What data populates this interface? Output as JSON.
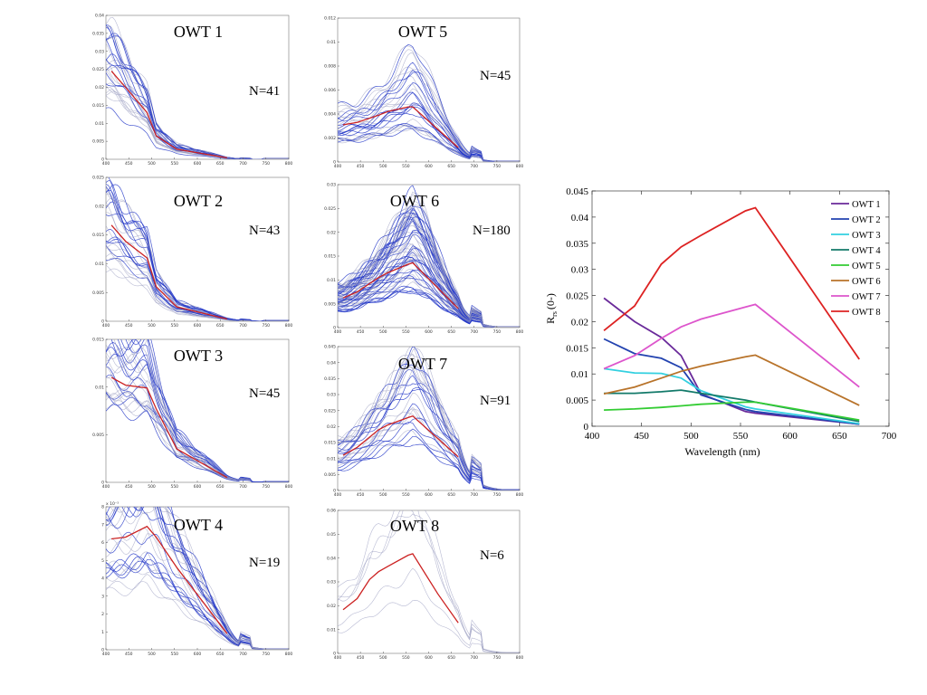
{
  "chart_data": [
    {
      "type": "line",
      "title": "OWT 1",
      "n_label": "N=41",
      "xlim": [
        400,
        800
      ],
      "ylim": [
        0,
        0.04
      ],
      "x_ticks": [
        400,
        450,
        500,
        550,
        600,
        650,
        700,
        750,
        800
      ],
      "x_tick_labels": [
        "400",
        "450",
        "500",
        "550",
        "600",
        "650",
        "700",
        "750",
        "800"
      ],
      "y_ticks": [
        0,
        0.005,
        0.01,
        0.015,
        0.02,
        0.025,
        0.03,
        0.035,
        0.04
      ],
      "y_tick_labels": [
        "0",
        "0.005",
        "0.01",
        "0.015",
        "0.02",
        "0.025",
        "0.03",
        "0.035",
        "0.04"
      ],
      "exponent_label": "",
      "series": [
        {
          "color": "#cc2222",
          "x": [
            412,
            443,
            490,
            510,
            555,
            665
          ],
          "y": [
            0.0245,
            0.02,
            0.013,
            0.0065,
            0.0028,
            0.0004
          ]
        }
      ]
    },
    {
      "type": "line",
      "title": "OWT 2",
      "n_label": "N=43",
      "xlim": [
        400,
        800
      ],
      "ylim": [
        0,
        0.025
      ],
      "x_ticks": [
        400,
        450,
        500,
        550,
        600,
        650,
        700,
        750,
        800
      ],
      "x_tick_labels": [
        "400",
        "450",
        "500",
        "550",
        "600",
        "650",
        "700",
        "750",
        "800"
      ],
      "y_ticks": [
        0,
        0.005,
        0.01,
        0.015,
        0.02,
        0.025
      ],
      "y_tick_labels": [
        "0",
        "0.005",
        "0.01",
        "0.015",
        "0.02",
        "0.025"
      ],
      "exponent_label": "",
      "series": [
        {
          "color": "#cc2222",
          "x": [
            412,
            443,
            490,
            510,
            555,
            665
          ],
          "y": [
            0.0167,
            0.0139,
            0.011,
            0.006,
            0.0025,
            0.0004
          ]
        }
      ]
    },
    {
      "type": "line",
      "title": "OWT 3",
      "n_label": "N=45",
      "xlim": [
        400,
        800
      ],
      "ylim": [
        0,
        0.015
      ],
      "x_ticks": [
        400,
        450,
        500,
        550,
        600,
        650,
        700,
        750,
        800
      ],
      "x_tick_labels": [
        "400",
        "450",
        "500",
        "550",
        "600",
        "650",
        "700",
        "750",
        "800"
      ],
      "y_ticks": [
        0,
        0.005,
        0.01,
        0.015
      ],
      "y_tick_labels": [
        "0",
        "0.005",
        "0.01",
        "0.015"
      ],
      "exponent_label": "",
      "series": [
        {
          "color": "#cc2222",
          "x": [
            412,
            443,
            490,
            510,
            555,
            665
          ],
          "y": [
            0.011,
            0.0102,
            0.0099,
            0.0077,
            0.0035,
            0.0005
          ]
        }
      ]
    },
    {
      "type": "line",
      "title": "OWT 4",
      "n_label": "N=19",
      "xlim": [
        400,
        800
      ],
      "ylim": [
        0,
        0.008
      ],
      "x_ticks": [
        400,
        450,
        500,
        550,
        600,
        650,
        700,
        750,
        800
      ],
      "x_tick_labels": [
        "400",
        "450",
        "500",
        "550",
        "600",
        "650",
        "700",
        "750",
        "800"
      ],
      "y_ticks": [
        0,
        0.001,
        0.002,
        0.003,
        0.004,
        0.005,
        0.006,
        0.007,
        0.008
      ],
      "y_tick_labels": [
        "0",
        "1",
        "2",
        "3",
        "4",
        "5",
        "6",
        "7",
        "8"
      ],
      "exponent_label": "x 10⁻³",
      "series": [
        {
          "color": "#cc2222",
          "x": [
            412,
            443,
            490,
            510,
            555,
            665
          ],
          "y": [
            0.0062,
            0.0063,
            0.0069,
            0.0063,
            0.0046,
            0.0009
          ]
        }
      ]
    },
    {
      "type": "line",
      "title": "OWT 5",
      "n_label": "N=45",
      "xlim": [
        400,
        800
      ],
      "ylim": [
        0,
        0.012
      ],
      "x_ticks": [
        400,
        450,
        500,
        550,
        600,
        650,
        700,
        750,
        800
      ],
      "x_tick_labels": [
        "400",
        "450",
        "500",
        "550",
        "600",
        "650",
        "700",
        "750",
        "800"
      ],
      "y_ticks": [
        0,
        0.002,
        0.004,
        0.006,
        0.008,
        0.01,
        0.012
      ],
      "y_tick_labels": [
        "0",
        "0.002",
        "0.004",
        "0.006",
        "0.008",
        "0.01",
        "0.012"
      ],
      "exponent_label": "",
      "series": [
        {
          "color": "#cc2222",
          "x": [
            412,
            443,
            490,
            510,
            555,
            565,
            665
          ],
          "y": [
            0.0031,
            0.0033,
            0.0039,
            0.0042,
            0.0046,
            0.0046,
            0.0012
          ]
        }
      ]
    },
    {
      "type": "line",
      "title": "OWT 6",
      "n_label": "N=180",
      "xlim": [
        400,
        800
      ],
      "ylim": [
        0,
        0.03
      ],
      "x_ticks": [
        400,
        450,
        500,
        550,
        600,
        650,
        700,
        750,
        800
      ],
      "x_tick_labels": [
        "400",
        "450",
        "500",
        "550",
        "600",
        "650",
        "700",
        "750",
        "800"
      ],
      "y_ticks": [
        0,
        0.005,
        0.01,
        0.015,
        0.02,
        0.025,
        0.03
      ],
      "y_tick_labels": [
        "0",
        "0.005",
        "0.01",
        "0.015",
        "0.02",
        "0.025",
        "0.03"
      ],
      "exponent_label": "",
      "series": [
        {
          "color": "#cc2222",
          "x": [
            412,
            443,
            490,
            510,
            555,
            565,
            665
          ],
          "y": [
            0.0062,
            0.0075,
            0.0105,
            0.0115,
            0.0133,
            0.0136,
            0.004
          ]
        }
      ]
    },
    {
      "type": "line",
      "title": "OWT 7",
      "n_label": "N=91",
      "xlim": [
        400,
        800
      ],
      "ylim": [
        0,
        0.045
      ],
      "x_ticks": [
        400,
        450,
        500,
        550,
        600,
        650,
        700,
        750,
        800
      ],
      "x_tick_labels": [
        "400",
        "450",
        "500",
        "550",
        "600",
        "650",
        "700",
        "750",
        "800"
      ],
      "y_ticks": [
        0,
        0.005,
        0.01,
        0.015,
        0.02,
        0.025,
        0.03,
        0.035,
        0.04,
        0.045
      ],
      "y_tick_labels": [
        "0",
        "0.005",
        "0.01",
        "0.015",
        "0.02",
        "0.025",
        "0.03",
        "0.035",
        "0.04",
        "0.045"
      ],
      "exponent_label": "",
      "series": [
        {
          "color": "#cc2222",
          "x": [
            412,
            443,
            490,
            510,
            555,
            565,
            665
          ],
          "y": [
            0.011,
            0.0135,
            0.019,
            0.0205,
            0.0228,
            0.0233,
            0.0105
          ]
        }
      ]
    },
    {
      "type": "line",
      "title": "OWT 8",
      "n_label": "N=6",
      "xlim": [
        400,
        800
      ],
      "ylim": [
        0,
        0.06
      ],
      "x_ticks": [
        400,
        450,
        500,
        550,
        600,
        650,
        700,
        750,
        800
      ],
      "x_tick_labels": [
        "400",
        "450",
        "500",
        "550",
        "600",
        "650",
        "700",
        "750",
        "800"
      ],
      "y_ticks": [
        0,
        0.01,
        0.02,
        0.03,
        0.04,
        0.05,
        0.06
      ],
      "y_tick_labels": [
        "0",
        "0.01",
        "0.02",
        "0.03",
        "0.04",
        "0.05",
        "0.06"
      ],
      "exponent_label": "",
      "series": [
        {
          "color": "#cc2222",
          "x": [
            412,
            443,
            470,
            490,
            510,
            555,
            565,
            620,
            665
          ],
          "y": [
            0.0183,
            0.023,
            0.031,
            0.0343,
            0.0365,
            0.0412,
            0.0418,
            0.025,
            0.0128
          ]
        }
      ]
    },
    {
      "type": "line",
      "xlabel": "Wavelength (nm)",
      "ylabel_main": "R",
      "ylabel_sub": "rs",
      "ylabel_suffix": "(0-)",
      "xlim": [
        400,
        700
      ],
      "ylim": [
        0,
        0.045
      ],
      "x_ticks": [
        400,
        450,
        500,
        550,
        600,
        650,
        700
      ],
      "x_tick_labels": [
        "400",
        "450",
        "500",
        "550",
        "600",
        "650",
        "700"
      ],
      "y_ticks": [
        0,
        0.005,
        0.01,
        0.015,
        0.02,
        0.025,
        0.03,
        0.035,
        0.04,
        0.045
      ],
      "y_tick_labels": [
        "0",
        "0.005",
        "0.01",
        "0.015",
        "0.02",
        "0.025",
        "0.03",
        "0.035",
        "0.04",
        "0.045"
      ],
      "legend_position": "top-right",
      "series": [
        {
          "name": "OWT 1",
          "color": "#6a2a9a",
          "x": [
            412,
            443,
            470,
            490,
            510,
            555,
            565,
            670
          ],
          "y": [
            0.0245,
            0.02,
            0.017,
            0.0135,
            0.0062,
            0.0028,
            0.0025,
            0.0004
          ]
        },
        {
          "name": "OWT 2",
          "color": "#2343b0",
          "x": [
            412,
            443,
            470,
            490,
            510,
            555,
            565,
            670
          ],
          "y": [
            0.0167,
            0.0139,
            0.013,
            0.0112,
            0.006,
            0.0032,
            0.0028,
            0.0004
          ]
        },
        {
          "name": "OWT 3",
          "color": "#33d0e0",
          "x": [
            412,
            443,
            470,
            490,
            510,
            555,
            565,
            670
          ],
          "y": [
            0.011,
            0.0102,
            0.0101,
            0.0092,
            0.0068,
            0.0037,
            0.0033,
            0.0005
          ]
        },
        {
          "name": "OWT 4",
          "color": "#137a6a",
          "x": [
            412,
            443,
            470,
            490,
            510,
            555,
            565,
            670
          ],
          "y": [
            0.0063,
            0.0063,
            0.0066,
            0.0069,
            0.0063,
            0.005,
            0.0046,
            0.0009
          ]
        },
        {
          "name": "OWT 5",
          "color": "#33cc33",
          "x": [
            412,
            443,
            470,
            490,
            510,
            555,
            565,
            670
          ],
          "y": [
            0.0031,
            0.0033,
            0.0036,
            0.0039,
            0.0042,
            0.0046,
            0.0046,
            0.0012
          ]
        },
        {
          "name": "OWT 6",
          "color": "#b8732a",
          "x": [
            412,
            443,
            470,
            490,
            510,
            555,
            565,
            670
          ],
          "y": [
            0.0062,
            0.0075,
            0.0092,
            0.0105,
            0.0115,
            0.0133,
            0.0136,
            0.004
          ]
        },
        {
          "name": "OWT 7",
          "color": "#dd55cc",
          "x": [
            412,
            443,
            470,
            490,
            510,
            555,
            565,
            670
          ],
          "y": [
            0.011,
            0.0135,
            0.0168,
            0.019,
            0.0205,
            0.0228,
            0.0233,
            0.0075
          ]
        },
        {
          "name": "OWT 8",
          "color": "#dd2222",
          "x": [
            412,
            443,
            470,
            490,
            510,
            555,
            565,
            670
          ],
          "y": [
            0.0183,
            0.023,
            0.031,
            0.0343,
            0.0365,
            0.0412,
            0.0418,
            0.0128
          ]
        }
      ]
    }
  ]
}
